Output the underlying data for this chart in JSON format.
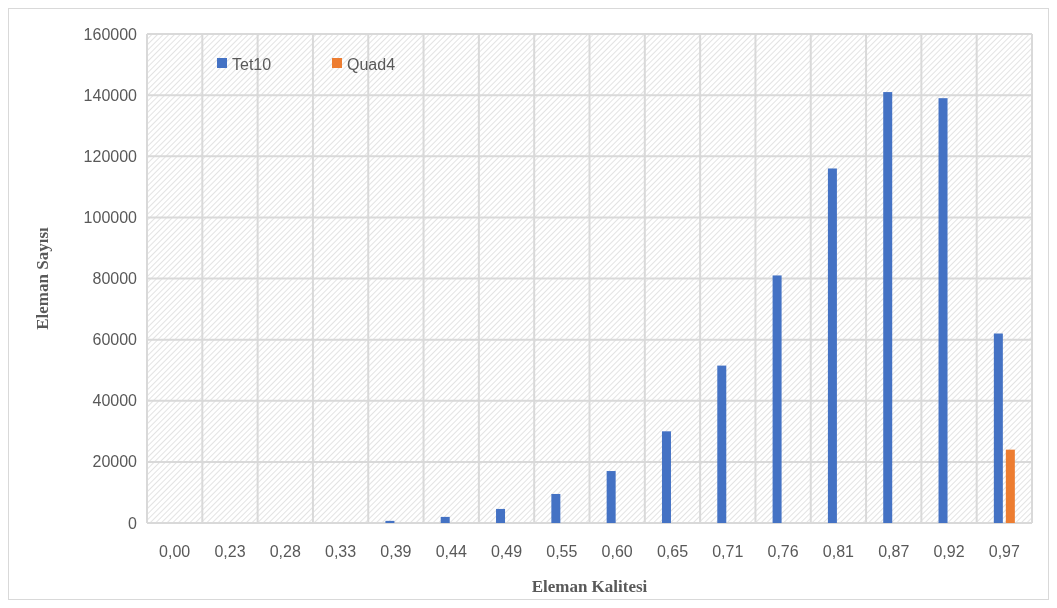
{
  "chart_data": {
    "type": "bar",
    "xlabel": "Eleman Kalitesi",
    "ylabel": "Eleman Sayısı",
    "categories": [
      "0,00",
      "0,23",
      "0,28",
      "0,33",
      "0,39",
      "0,44",
      "0,49",
      "0,55",
      "0,60",
      "0,65",
      "0,71",
      "0,76",
      "0,81",
      "0,87",
      "0,92",
      "0,97"
    ],
    "series": [
      {
        "name": "Tet10",
        "color": "#4472c4",
        "values": [
          0,
          0,
          0,
          0,
          700,
          2000,
          4600,
          9500,
          17000,
          30000,
          51500,
          81000,
          116000,
          141000,
          139000,
          62000
        ]
      },
      {
        "name": "Quad4",
        "color": "#ed7d31",
        "values": [
          0,
          0,
          0,
          0,
          0,
          0,
          0,
          0,
          0,
          0,
          0,
          0,
          0,
          0,
          0,
          24000
        ]
      }
    ],
    "ylim": [
      0,
      160000
    ],
    "yticks": [
      0,
      20000,
      40000,
      60000,
      80000,
      100000,
      120000,
      140000,
      160000
    ],
    "grid": true,
    "legend": "top left"
  }
}
